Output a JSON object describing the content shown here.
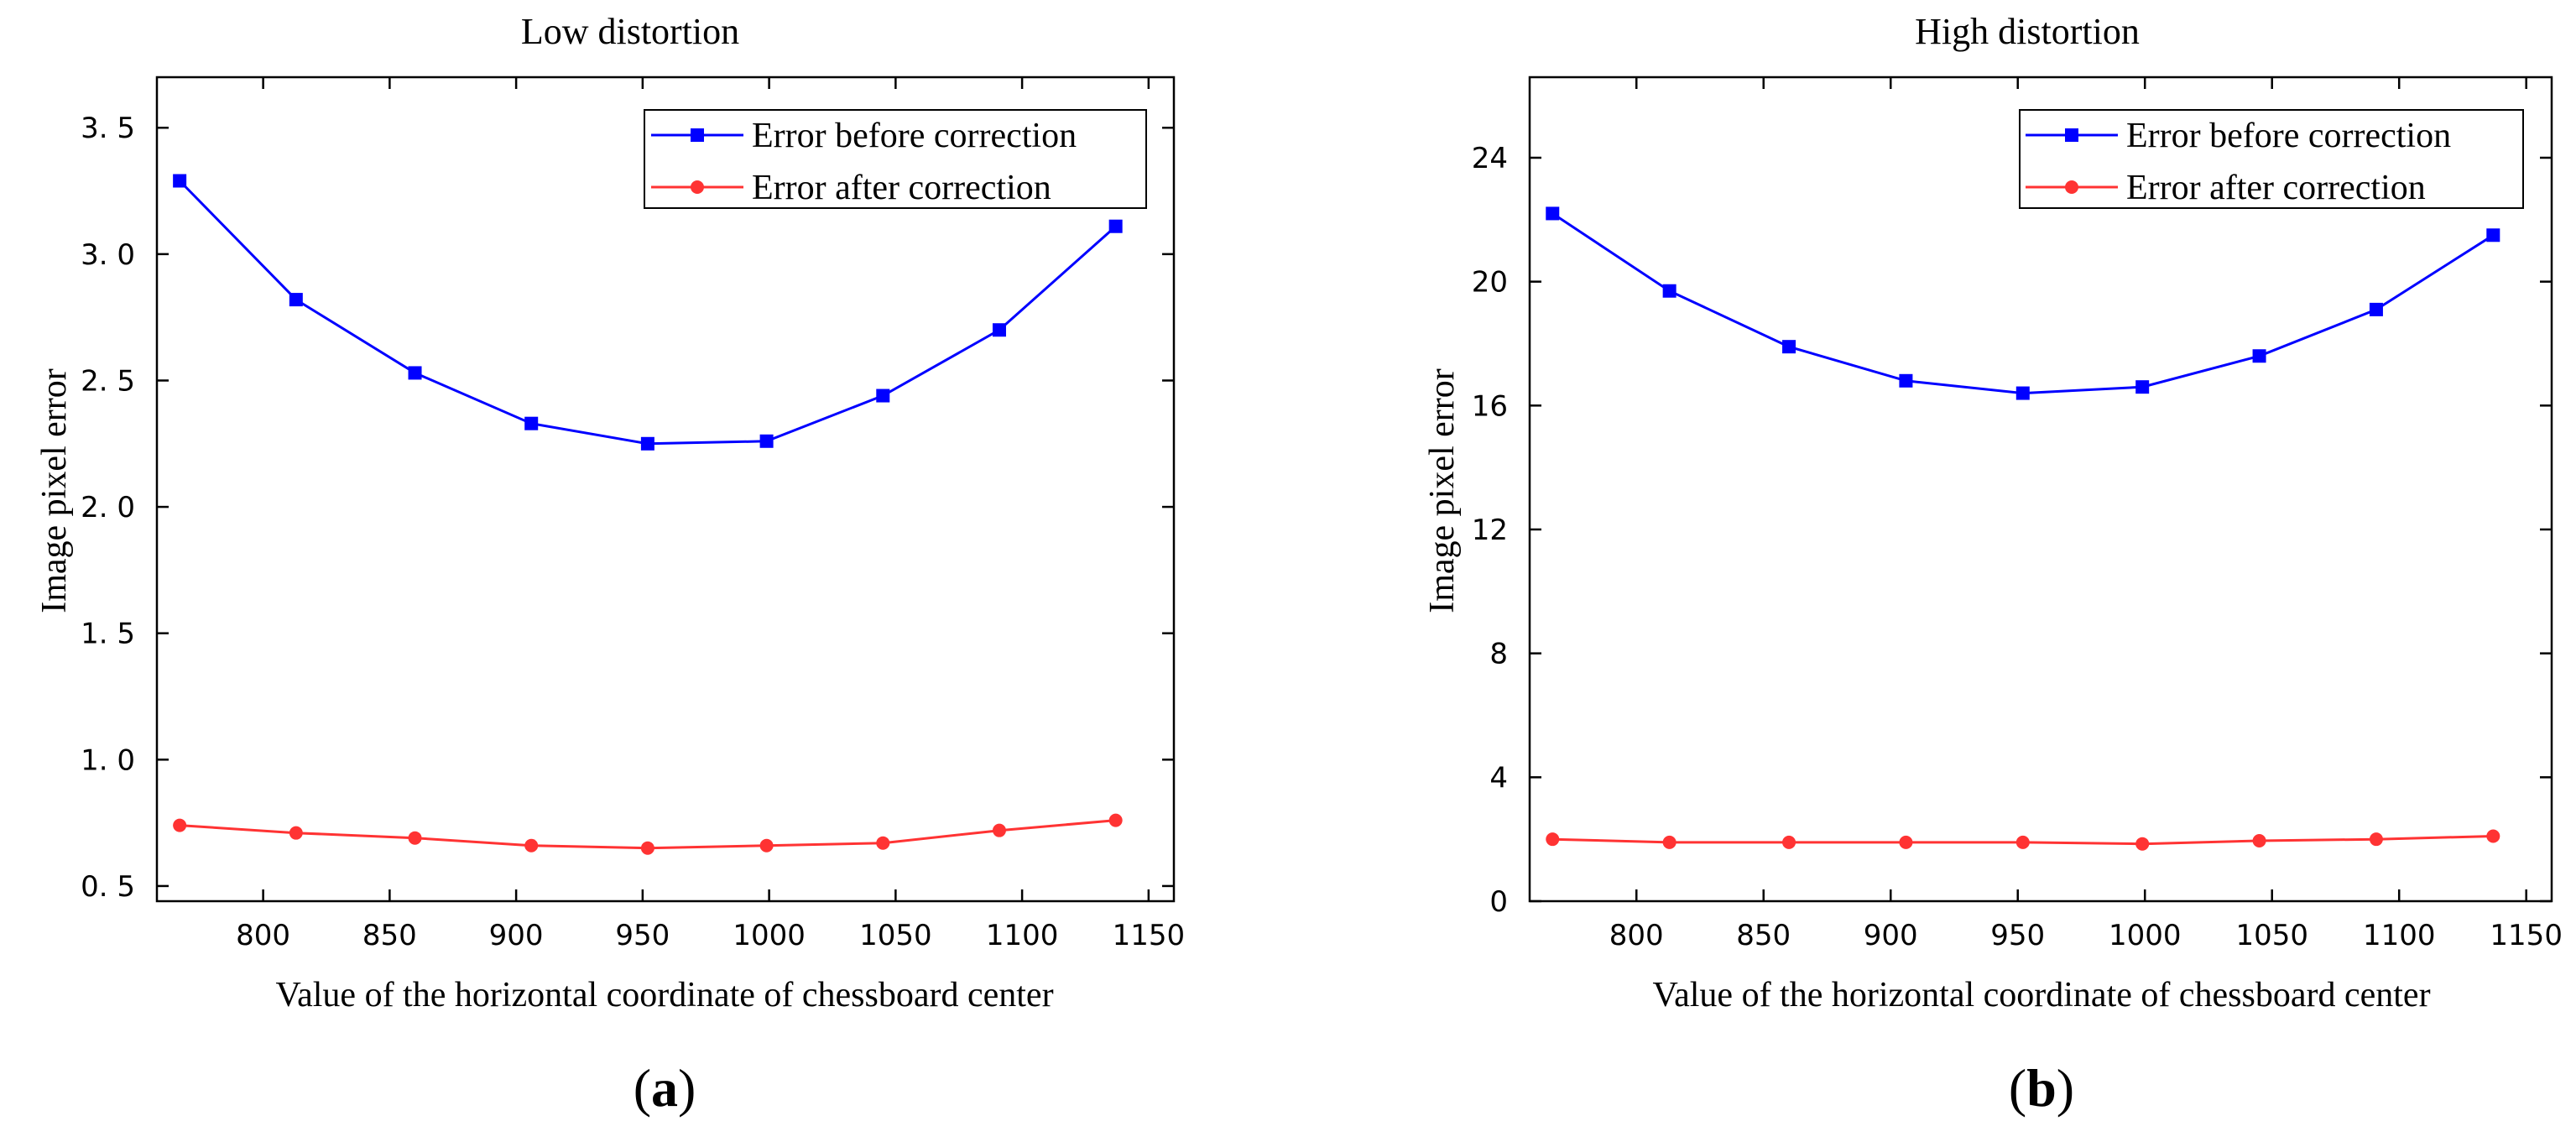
{
  "chart_data": [
    {
      "type": "line",
      "title": "Low distortion",
      "xlabel": "Value of the horizontal coordinate of chessboard center",
      "ylabel": "Image pixel error",
      "panel_label": "a",
      "x": [
        767,
        813,
        860,
        906,
        952,
        999,
        1045,
        1091,
        1137
      ],
      "xlim": [
        758,
        1160
      ],
      "ylim": [
        0.44,
        3.7
      ],
      "xticks": [
        800,
        850,
        900,
        950,
        1000,
        1050,
        1100,
        1150
      ],
      "yticks": [
        0.5,
        1.0,
        1.5,
        2.0,
        2.5,
        3.0,
        3.5
      ],
      "ytick_labels": [
        "0. 5",
        "1. 0",
        "1. 5",
        "2. 0",
        "2. 5",
        "3. 0",
        "3. 5"
      ],
      "legend_position": "top-right",
      "grid": false,
      "series": [
        {
          "name": "Error before correction",
          "color": "#0000ff",
          "marker": "square",
          "values": [
            3.29,
            2.82,
            2.53,
            2.33,
            2.25,
            2.26,
            2.44,
            2.7,
            3.11
          ]
        },
        {
          "name": "Error after correction",
          "color": "#ff3333",
          "marker": "circle",
          "values": [
            0.74,
            0.71,
            0.69,
            0.66,
            0.65,
            0.66,
            0.67,
            0.72,
            0.76
          ]
        }
      ]
    },
    {
      "type": "line",
      "title": "High distortion",
      "xlabel": "Value of the horizontal coordinate of chessboard center",
      "ylabel": "Image pixel error",
      "panel_label": "b",
      "x": [
        767,
        813,
        860,
        906,
        952,
        999,
        1045,
        1091,
        1137
      ],
      "xlim": [
        758,
        1160
      ],
      "ylim": [
        0,
        26.6
      ],
      "xticks": [
        800,
        850,
        900,
        950,
        1000,
        1050,
        1100,
        1150
      ],
      "yticks": [
        0,
        4,
        8,
        12,
        16,
        20,
        24
      ],
      "ytick_labels": [
        "0",
        "4",
        "8",
        "12",
        "16",
        "20",
        "24"
      ],
      "legend_position": "top-right",
      "grid": false,
      "series": [
        {
          "name": "Error before correction",
          "color": "#0000ff",
          "marker": "square",
          "values": [
            22.2,
            19.7,
            17.9,
            16.8,
            16.4,
            16.6,
            17.6,
            19.1,
            21.5
          ]
        },
        {
          "name": "Error after correction",
          "color": "#ff3333",
          "marker": "circle",
          "values": [
            2.0,
            1.9,
            1.9,
            1.9,
            1.9,
            1.85,
            1.95,
            2.0,
            2.1
          ]
        }
      ]
    }
  ]
}
